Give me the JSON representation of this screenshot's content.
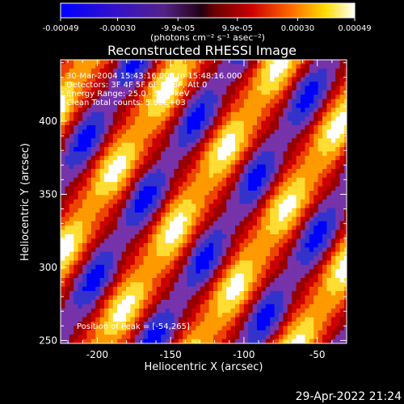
{
  "chart_data": {
    "type": "heatmap",
    "title": "Reconstructed RHESSI Image",
    "xlabel": "Heliocentric X (arcsec)",
    "ylabel": "Heliocentric Y (arcsec)",
    "xlim": [
      -225,
      -30
    ],
    "ylim": [
      248,
      442
    ],
    "xticks": [
      -200,
      -150,
      -100,
      -50
    ],
    "yticks": [
      250,
      300,
      350,
      400
    ],
    "colorbar": {
      "ticks": [
        "-0.00049",
        "-0.00030",
        "-9.9e-05",
        "9.9e-05",
        "0.00030",
        "0.00049"
      ],
      "tick_values": [
        -0.00049,
        -0.0003,
        -9.9e-05,
        9.9e-05,
        0.0003,
        0.00049
      ],
      "range": [
        -0.00049,
        0.00049
      ],
      "units": "(photons cm⁻² s⁻¹ asec⁻²)"
    },
    "annotations": [
      "30-Mar-2004 15:43:16.000 to 15:48:16.000",
      "Detectors: 3F 4F 5F 6F 7F 8F, Att 0",
      "Energy Range: 25.0 - 50.0 keV",
      "Clean    Total counts: 5.82E+03"
    ],
    "peak_label": "Position of Peak = [-54,265]",
    "peak": [
      -54,
      265
    ],
    "colors": [
      "#0000ff",
      "#3333cc",
      "#7733aa",
      "#990000",
      "#cc0000",
      "#ee4400",
      "#ff9900",
      "#ffdd33",
      "#ffffff"
    ]
  },
  "footer": {
    "timestamp": "29-Apr-2022 21:24"
  }
}
